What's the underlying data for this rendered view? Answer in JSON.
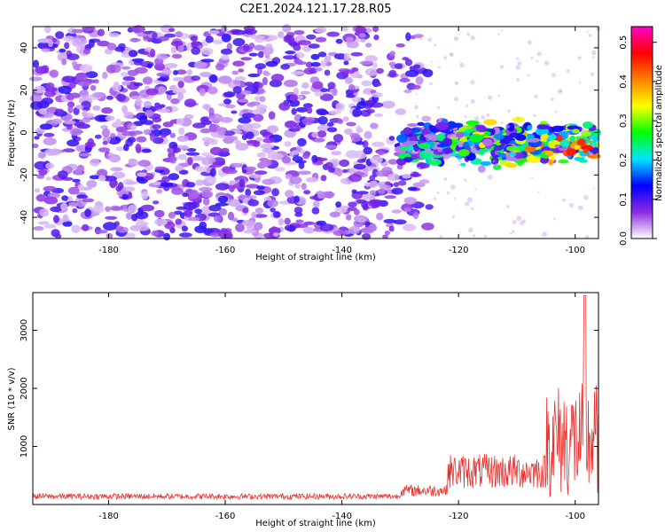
{
  "title": "C2E1.2024.121.17.28.R05",
  "colors": {
    "line": "#e8312e",
    "heat_bg": "#ffffff"
  },
  "chart_data": [
    {
      "type": "heatmap",
      "xlabel": "Height of straight line (km)",
      "ylabel": "Frequency (Hz)",
      "xlim": [
        -193,
        -96
      ],
      "ylim": [
        -50,
        50
      ],
      "x_ticks": [
        -180,
        -160,
        -140,
        -120,
        -100
      ],
      "y_ticks": [
        -40,
        -20,
        0,
        20,
        40
      ],
      "colorbar": {
        "label": "Normalized spectral amplitude",
        "range": [
          0,
          0.54
        ],
        "ticks": [
          0.0,
          0.1,
          0.2,
          0.3,
          0.4,
          0.5
        ],
        "colormap": [
          "#ffffff",
          "#8a2be2",
          "#0000ff",
          "#00e5ff",
          "#00ff00",
          "#ffff00",
          "#ff8000",
          "#ff0000",
          "#ff00cc"
        ]
      },
      "description_regions": [
        {
          "x": [
            -193,
            -125
          ],
          "y": [
            -50,
            50
          ],
          "amplitude_range": [
            0.02,
            0.12
          ]
        },
        {
          "x": [
            -130,
            -96
          ],
          "y": [
            -15,
            5
          ],
          "amplitude_range": [
            0.05,
            0.5
          ]
        }
      ]
    },
    {
      "type": "line",
      "xlabel": "Height of straight line (km)",
      "ylabel": "SNR (10 * v/v)",
      "xlim": [
        -193,
        -96
      ],
      "ylim": [
        0,
        3650
      ],
      "x_ticks": [
        -180,
        -160,
        -140,
        -120,
        -100
      ],
      "y_ticks": [
        1000,
        2000,
        3000
      ],
      "segments": [
        {
          "x": [
            -193,
            -130
          ],
          "baseline": 120,
          "noise": 100
        },
        {
          "x": [
            -130,
            -122
          ],
          "baseline": 200,
          "noise": 200
        },
        {
          "x": [
            -122,
            -105
          ],
          "baseline": 450,
          "noise": 600
        },
        {
          "x": [
            -105,
            -96
          ],
          "baseline": 700,
          "noise": 2000
        }
      ],
      "peak": {
        "x": -98.3,
        "y": 3600
      }
    }
  ]
}
